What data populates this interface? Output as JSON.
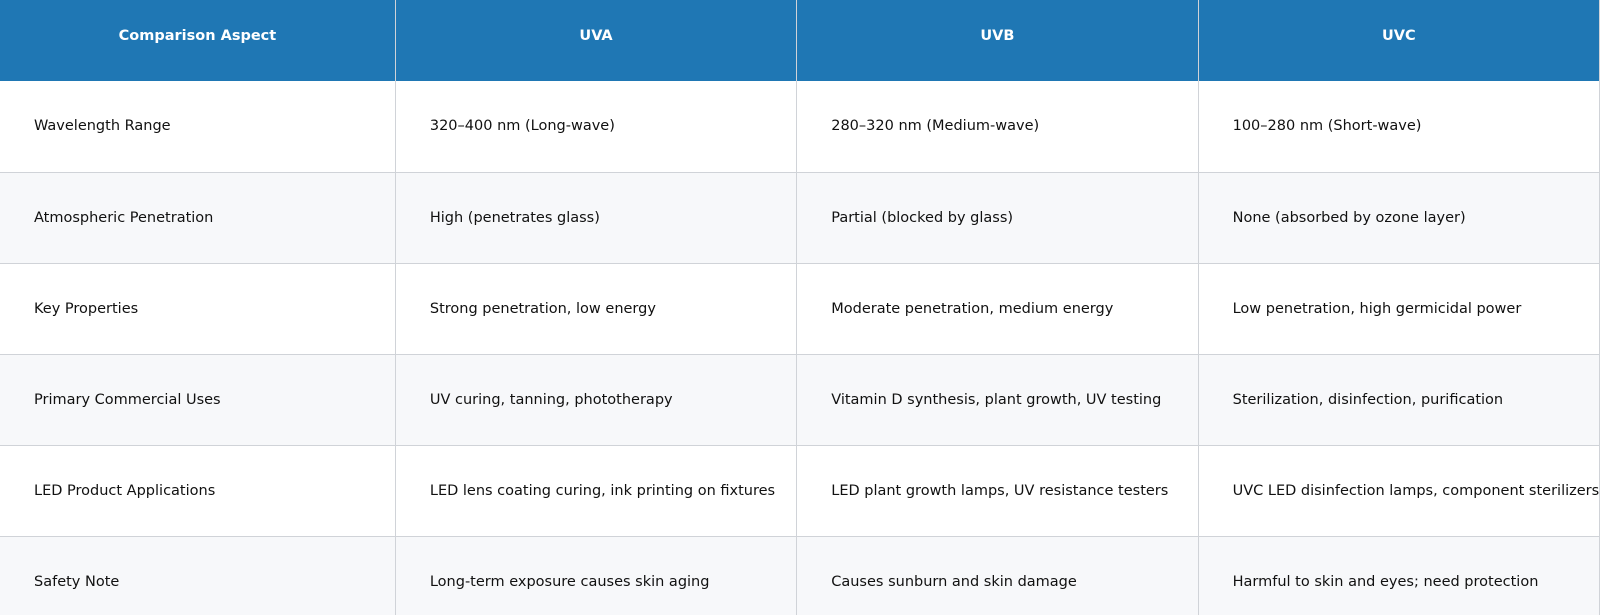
{
  "table": {
    "header": [
      "Comparison Aspect",
      "UVA",
      "UVB",
      "UVC"
    ],
    "rows": [
      [
        "Wavelength Range",
        "320–400 nm (Long-wave)",
        "280–320 nm (Medium-wave)",
        "100–280 nm (Short-wave)"
      ],
      [
        "Atmospheric Penetration",
        "High (penetrates glass)",
        "Partial (blocked by glass)",
        "None (absorbed by ozone layer)"
      ],
      [
        "Key Properties",
        "Strong penetration, low energy",
        "Moderate penetration, medium energy",
        "Low penetration, high germicidal power"
      ],
      [
        "Primary Commercial Uses",
        "UV curing, tanning, phototherapy",
        "Vitamin D synthesis, plant growth, UV testing",
        "Sterilization, disinfection, purification"
      ],
      [
        "LED Product Applications",
        "LED lens coating curing, ink printing on fixtures",
        "LED plant growth lamps, UV resistance testers",
        "UVC LED disinfection lamps, component sterilizers"
      ],
      [
        "Safety Note",
        "Long-term exposure causes skin aging",
        "Causes sunburn and skin damage",
        "Harmful to skin and eyes; need protection"
      ]
    ]
  }
}
